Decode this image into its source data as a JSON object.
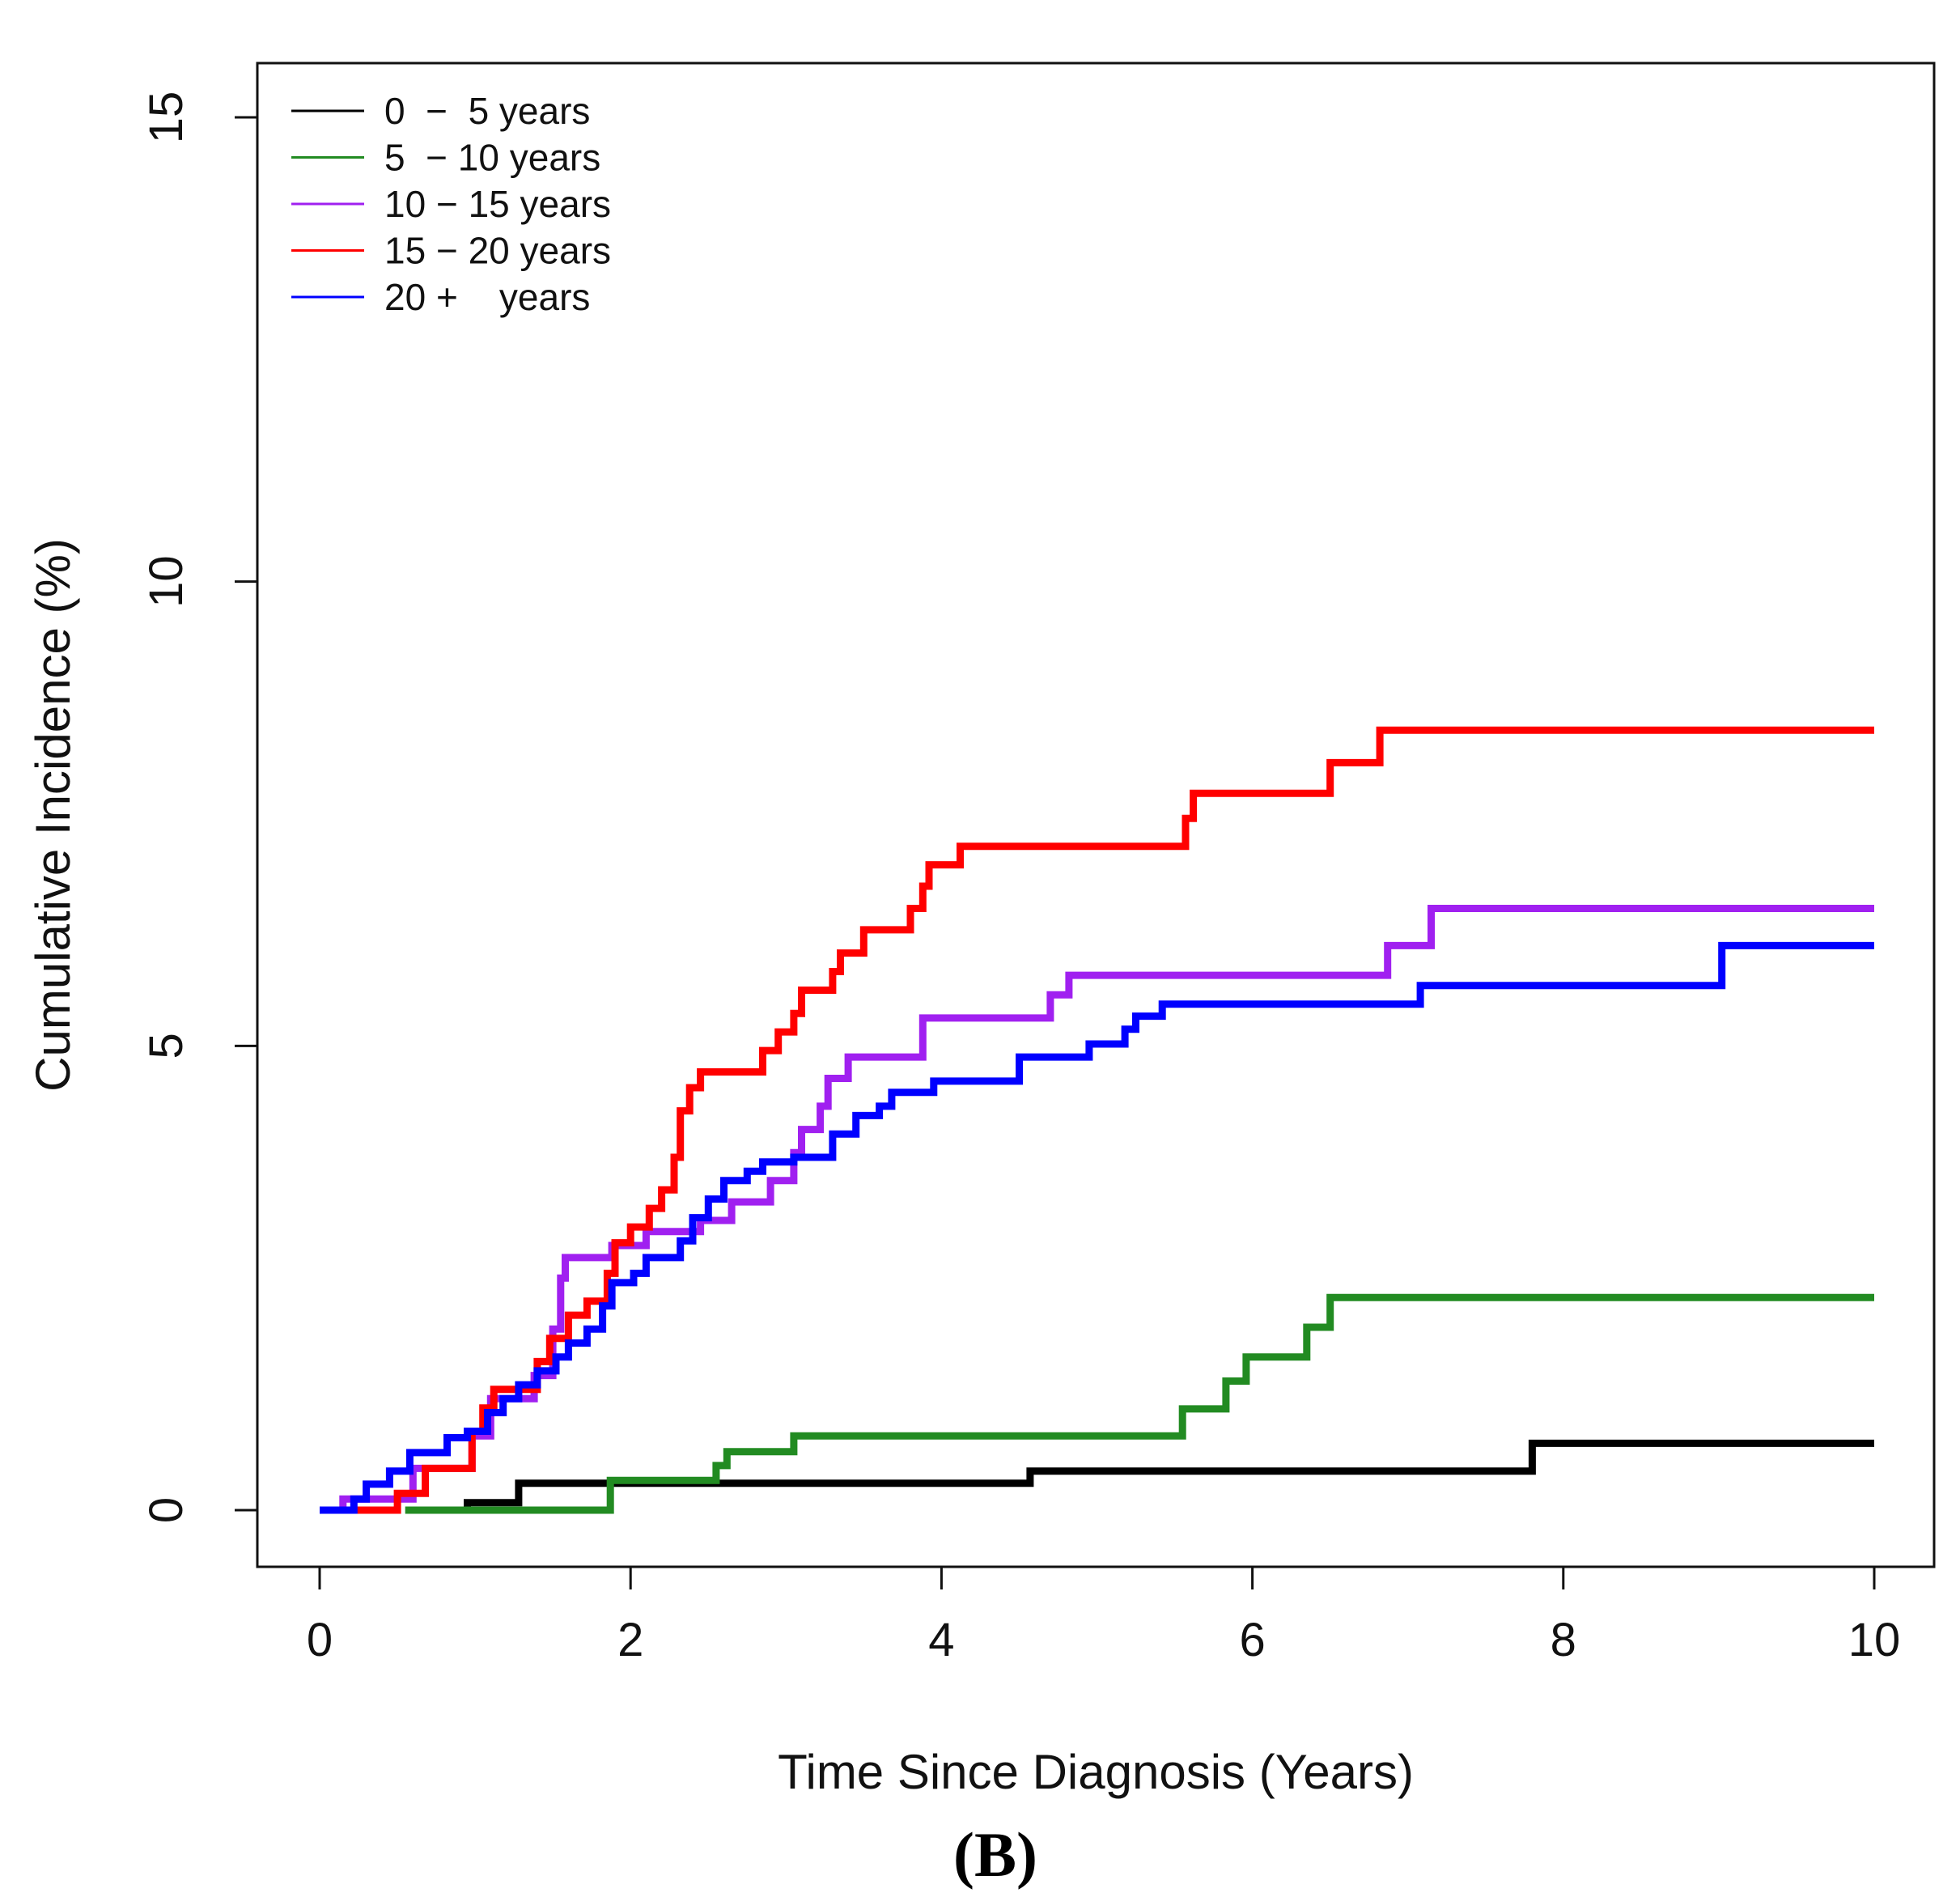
{
  "chart_data": {
    "type": "line",
    "step": true,
    "title": "",
    "caption": "(B)",
    "xlabel": "Time Since Diagnosis (Years)",
    "ylabel": "Cumulative Incidence (%)",
    "xlim": [
      0,
      10
    ],
    "ylim": [
      0,
      15
    ],
    "xticks": [
      0,
      2,
      4,
      6,
      8,
      10
    ],
    "xtick_labels": [
      "0",
      "2",
      "4",
      "6",
      "8",
      "10"
    ],
    "yticks": [
      0,
      5,
      10,
      15
    ],
    "ytick_labels": [
      "0",
      "5",
      "10",
      "15"
    ],
    "grid": false,
    "legend_position": "top-left",
    "series": [
      {
        "name": "0  −  5 years",
        "color": "#000000",
        "points": [
          [
            0.95,
            0
          ],
          [
            0.95,
            0.08
          ],
          [
            1.28,
            0.08
          ],
          [
            1.28,
            0.29
          ],
          [
            4.57,
            0.29
          ],
          [
            4.57,
            0.42
          ],
          [
            7.8,
            0.42
          ],
          [
            7.8,
            0.72
          ],
          [
            10,
            0.72
          ]
        ]
      },
      {
        "name": "5  − 10 years",
        "color": "#228B22",
        "points": [
          [
            0.55,
            0
          ],
          [
            1.87,
            0
          ],
          [
            1.87,
            0.32
          ],
          [
            2.55,
            0.32
          ],
          [
            2.55,
            0.48
          ],
          [
            2.62,
            0.48
          ],
          [
            2.62,
            0.63
          ],
          [
            3.05,
            0.63
          ],
          [
            3.05,
            0.8
          ],
          [
            5.55,
            0.8
          ],
          [
            5.55,
            1.09
          ],
          [
            5.83,
            1.09
          ],
          [
            5.83,
            1.39
          ],
          [
            5.96,
            1.39
          ],
          [
            5.96,
            1.65
          ],
          [
            6.35,
            1.65
          ],
          [
            6.35,
            1.97
          ],
          [
            6.5,
            1.97
          ],
          [
            6.5,
            2.29
          ],
          [
            10,
            2.29
          ]
        ]
      },
      {
        "name": "10 − 15 years",
        "color": "#A020F0",
        "points": [
          [
            0.15,
            0
          ],
          [
            0.15,
            0.12
          ],
          [
            0.6,
            0.12
          ],
          [
            0.6,
            0.45
          ],
          [
            0.98,
            0.45
          ],
          [
            0.98,
            0.8
          ],
          [
            1.1,
            0.8
          ],
          [
            1.1,
            1.2
          ],
          [
            1.38,
            1.2
          ],
          [
            1.38,
            1.45
          ],
          [
            1.5,
            1.45
          ],
          [
            1.5,
            1.95
          ],
          [
            1.55,
            1.95
          ],
          [
            1.55,
            2.5
          ],
          [
            1.58,
            2.5
          ],
          [
            1.58,
            2.72
          ],
          [
            1.88,
            2.72
          ],
          [
            1.88,
            2.85
          ],
          [
            2.1,
            2.85
          ],
          [
            2.1,
            3.0
          ],
          [
            2.45,
            3.0
          ],
          [
            2.45,
            3.12
          ],
          [
            2.65,
            3.12
          ],
          [
            2.65,
            3.32
          ],
          [
            2.9,
            3.32
          ],
          [
            2.9,
            3.55
          ],
          [
            3.05,
            3.55
          ],
          [
            3.05,
            3.85
          ],
          [
            3.1,
            3.85
          ],
          [
            3.1,
            4.1
          ],
          [
            3.22,
            4.1
          ],
          [
            3.22,
            4.35
          ],
          [
            3.27,
            4.35
          ],
          [
            3.27,
            4.65
          ],
          [
            3.4,
            4.65
          ],
          [
            3.4,
            4.88
          ],
          [
            3.88,
            4.88
          ],
          [
            3.88,
            5.3
          ],
          [
            4.7,
            5.3
          ],
          [
            4.7,
            5.55
          ],
          [
            4.82,
            5.55
          ],
          [
            4.82,
            5.76
          ],
          [
            6.87,
            5.76
          ],
          [
            6.87,
            6.08
          ],
          [
            7.15,
            6.08
          ],
          [
            7.15,
            6.48
          ],
          [
            10,
            6.48
          ]
        ]
      },
      {
        "name": "15 − 20 years",
        "color": "#FF0000",
        "points": [
          [
            0.22,
            0
          ],
          [
            0.5,
            0
          ],
          [
            0.5,
            0.18
          ],
          [
            0.68,
            0.18
          ],
          [
            0.68,
            0.45
          ],
          [
            0.98,
            0.45
          ],
          [
            0.98,
            0.85
          ],
          [
            1.05,
            0.85
          ],
          [
            1.05,
            1.1
          ],
          [
            1.12,
            1.1
          ],
          [
            1.12,
            1.3
          ],
          [
            1.4,
            1.3
          ],
          [
            1.4,
            1.6
          ],
          [
            1.48,
            1.6
          ],
          [
            1.48,
            1.85
          ],
          [
            1.6,
            1.85
          ],
          [
            1.6,
            2.1
          ],
          [
            1.72,
            2.1
          ],
          [
            1.72,
            2.25
          ],
          [
            1.85,
            2.25
          ],
          [
            1.85,
            2.55
          ],
          [
            1.9,
            2.55
          ],
          [
            1.9,
            2.88
          ],
          [
            2.0,
            2.88
          ],
          [
            2.0,
            3.05
          ],
          [
            2.12,
            3.05
          ],
          [
            2.12,
            3.25
          ],
          [
            2.2,
            3.25
          ],
          [
            2.2,
            3.45
          ],
          [
            2.28,
            3.45
          ],
          [
            2.28,
            3.8
          ],
          [
            2.32,
            3.8
          ],
          [
            2.32,
            4.3
          ],
          [
            2.38,
            4.3
          ],
          [
            2.38,
            4.55
          ],
          [
            2.45,
            4.55
          ],
          [
            2.45,
            4.72
          ],
          [
            2.85,
            4.72
          ],
          [
            2.85,
            4.95
          ],
          [
            2.95,
            4.95
          ],
          [
            2.95,
            5.15
          ],
          [
            3.05,
            5.15
          ],
          [
            3.05,
            5.35
          ],
          [
            3.1,
            5.35
          ],
          [
            3.1,
            5.6
          ],
          [
            3.3,
            5.6
          ],
          [
            3.3,
            5.8
          ],
          [
            3.35,
            5.8
          ],
          [
            3.35,
            6.0
          ],
          [
            3.5,
            6.0
          ],
          [
            3.5,
            6.25
          ],
          [
            3.8,
            6.25
          ],
          [
            3.8,
            6.48
          ],
          [
            3.88,
            6.48
          ],
          [
            3.88,
            6.72
          ],
          [
            3.92,
            6.72
          ],
          [
            3.92,
            6.95
          ],
          [
            4.12,
            6.95
          ],
          [
            4.12,
            7.15
          ],
          [
            5.57,
            7.15
          ],
          [
            5.57,
            7.45
          ],
          [
            5.62,
            7.45
          ],
          [
            5.62,
            7.72
          ],
          [
            6.5,
            7.72
          ],
          [
            6.5,
            8.05
          ],
          [
            6.82,
            8.05
          ],
          [
            6.82,
            8.4
          ],
          [
            10,
            8.4
          ]
        ]
      },
      {
        "name": "20 +    years",
        "color": "#0000FF",
        "points": [
          [
            0,
            0
          ],
          [
            0.22,
            0
          ],
          [
            0.22,
            0.12
          ],
          [
            0.3,
            0.12
          ],
          [
            0.3,
            0.28
          ],
          [
            0.45,
            0.28
          ],
          [
            0.45,
            0.42
          ],
          [
            0.58,
            0.42
          ],
          [
            0.58,
            0.62
          ],
          [
            0.82,
            0.62
          ],
          [
            0.82,
            0.78
          ],
          [
            0.95,
            0.78
          ],
          [
            0.95,
            0.85
          ],
          [
            1.08,
            0.85
          ],
          [
            1.08,
            1.05
          ],
          [
            1.18,
            1.05
          ],
          [
            1.18,
            1.2
          ],
          [
            1.28,
            1.2
          ],
          [
            1.28,
            1.35
          ],
          [
            1.4,
            1.35
          ],
          [
            1.4,
            1.5
          ],
          [
            1.52,
            1.5
          ],
          [
            1.52,
            1.65
          ],
          [
            1.6,
            1.65
          ],
          [
            1.6,
            1.8
          ],
          [
            1.72,
            1.8
          ],
          [
            1.72,
            1.95
          ],
          [
            1.82,
            1.95
          ],
          [
            1.82,
            2.2
          ],
          [
            1.88,
            2.2
          ],
          [
            1.88,
            2.45
          ],
          [
            2.02,
            2.45
          ],
          [
            2.02,
            2.55
          ],
          [
            2.1,
            2.55
          ],
          [
            2.1,
            2.72
          ],
          [
            2.32,
            2.72
          ],
          [
            2.32,
            2.9
          ],
          [
            2.4,
            2.9
          ],
          [
            2.4,
            3.15
          ],
          [
            2.5,
            3.15
          ],
          [
            2.5,
            3.35
          ],
          [
            2.6,
            3.35
          ],
          [
            2.6,
            3.55
          ],
          [
            2.75,
            3.55
          ],
          [
            2.75,
            3.65
          ],
          [
            2.85,
            3.65
          ],
          [
            2.85,
            3.75
          ],
          [
            3.05,
            3.75
          ],
          [
            3.05,
            3.8
          ],
          [
            3.3,
            3.8
          ],
          [
            3.3,
            4.05
          ],
          [
            3.45,
            4.05
          ],
          [
            3.45,
            4.25
          ],
          [
            3.6,
            4.25
          ],
          [
            3.6,
            4.35
          ],
          [
            3.68,
            4.35
          ],
          [
            3.68,
            4.5
          ],
          [
            3.95,
            4.5
          ],
          [
            3.95,
            4.62
          ],
          [
            4.5,
            4.62
          ],
          [
            4.5,
            4.88
          ],
          [
            4.95,
            4.88
          ],
          [
            4.95,
            5.02
          ],
          [
            5.18,
            5.02
          ],
          [
            5.18,
            5.18
          ],
          [
            5.25,
            5.18
          ],
          [
            5.25,
            5.32
          ],
          [
            5.42,
            5.32
          ],
          [
            5.42,
            5.45
          ],
          [
            7.08,
            5.45
          ],
          [
            7.08,
            5.65
          ],
          [
            9.02,
            5.65
          ],
          [
            9.02,
            6.08
          ],
          [
            10,
            6.08
          ]
        ]
      }
    ]
  }
}
